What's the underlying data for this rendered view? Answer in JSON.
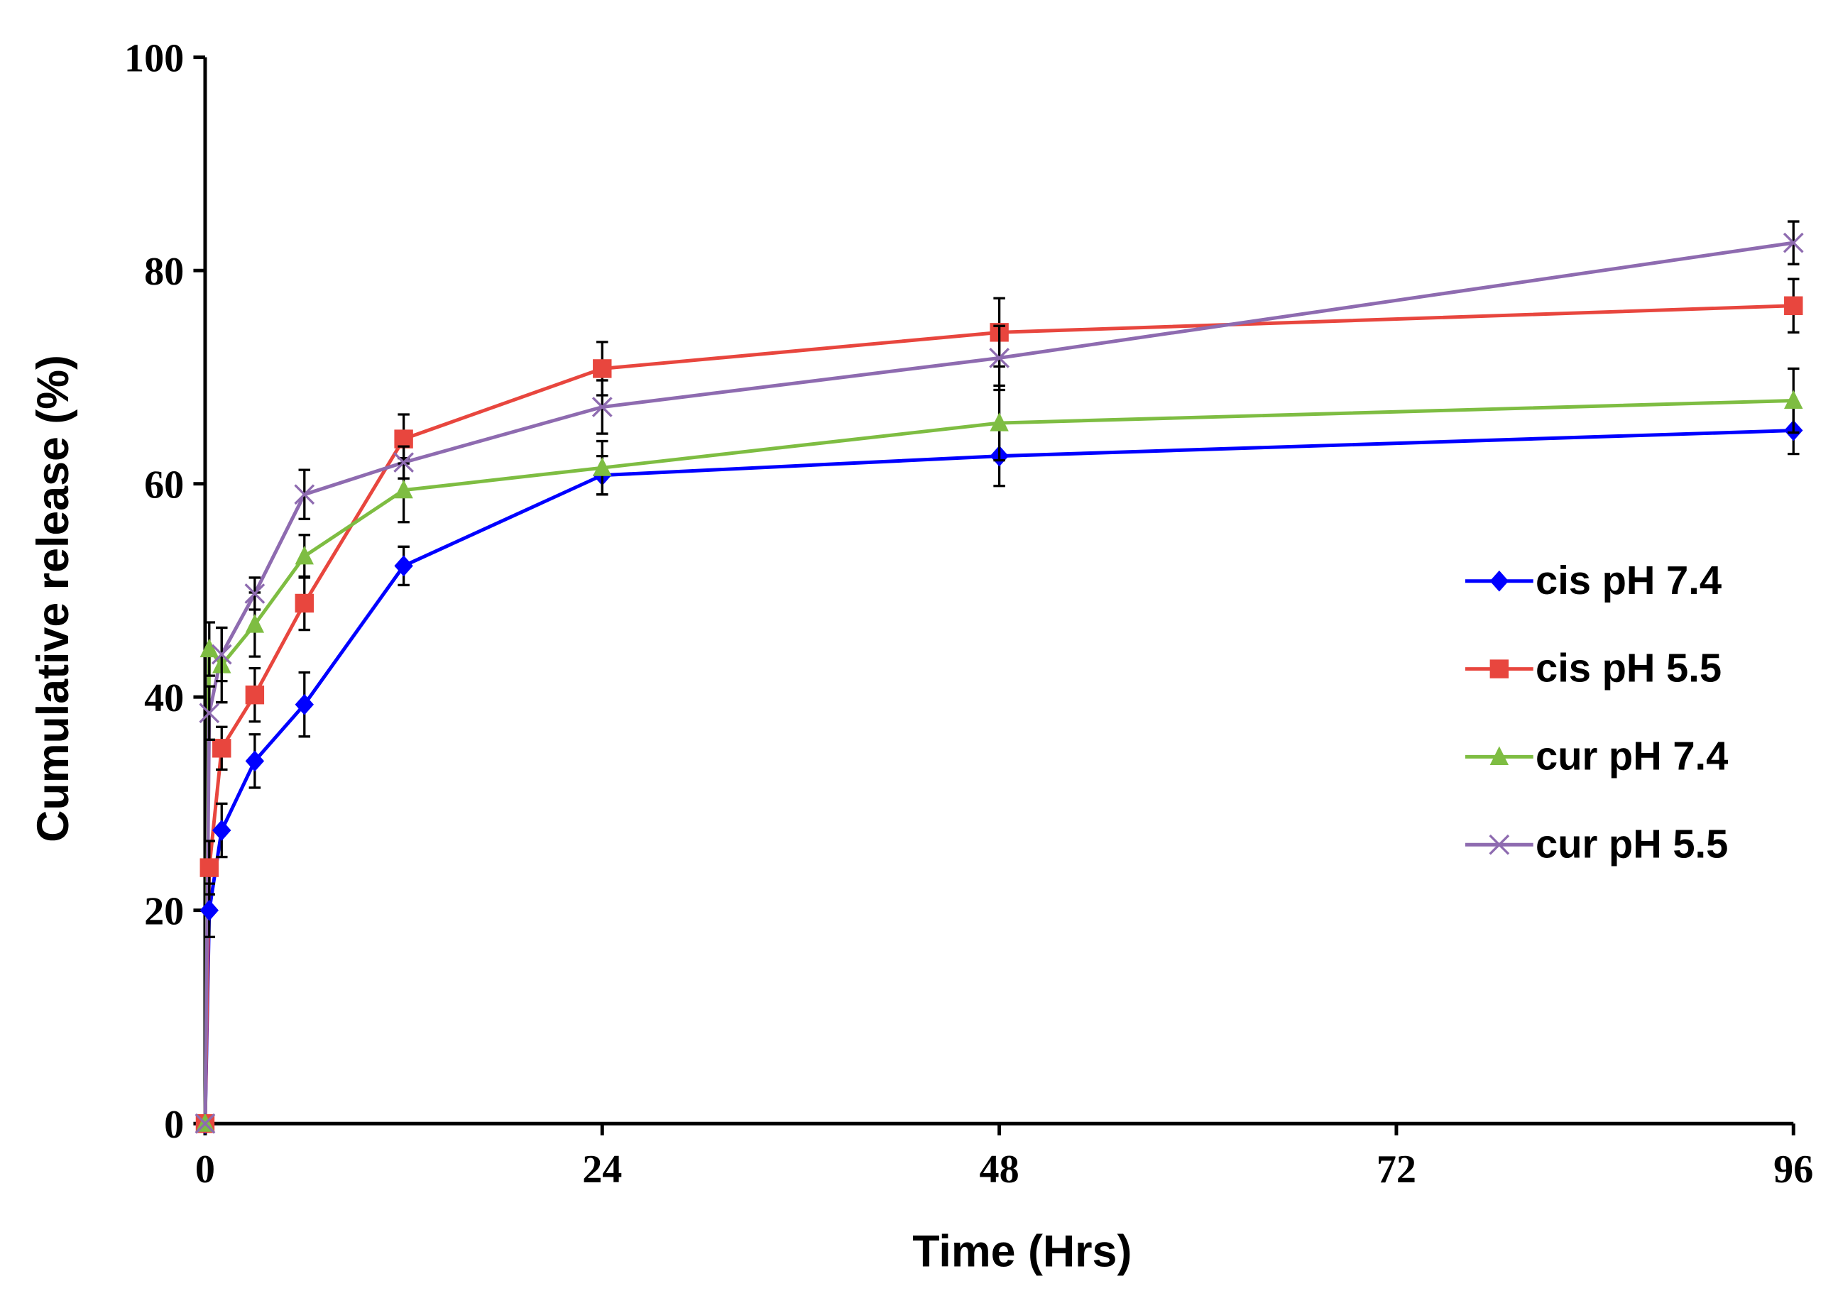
{
  "chart_data": {
    "type": "line",
    "x_label": "Time (Hrs)",
    "y_label": "Cumulative release (%)",
    "x": [
      0,
      0.25,
      1,
      3,
      6,
      12,
      24,
      48,
      96
    ],
    "series": [
      {
        "name": "cis pH 7.4",
        "color": "#0000ff",
        "marker": "diamond",
        "values": [
          0,
          20,
          27.5,
          34,
          39.3,
          52.3,
          60.8,
          62.6,
          65
        ],
        "errors": [
          0,
          2.5,
          2.5,
          2.5,
          3,
          1.8,
          1.8,
          2.8,
          2.2
        ]
      },
      {
        "name": "cis pH 5.5",
        "color": "#e8463e",
        "marker": "square",
        "values": [
          0,
          24,
          35.2,
          40.2,
          48.8,
          64.2,
          70.8,
          74.2,
          76.7
        ],
        "errors": [
          0,
          2.5,
          2,
          2.5,
          2.5,
          2.3,
          2.5,
          3.2,
          2.5
        ]
      },
      {
        "name": "cur pH 7.4",
        "color": "#7ebd42",
        "marker": "triangle",
        "values": [
          0,
          44.5,
          43,
          46.8,
          53.2,
          59.4,
          61.5,
          65.7,
          67.8
        ],
        "errors": [
          0,
          2.5,
          3.5,
          3,
          2,
          3,
          2.5,
          3.5,
          3
        ]
      },
      {
        "name": "cur pH 5.5",
        "color": "#8e6bb0",
        "marker": "x",
        "values": [
          0,
          38.5,
          44,
          49.7,
          59,
          62,
          67.2,
          71.8,
          82.6
        ],
        "errors": [
          0,
          2.5,
          2.5,
          1.5,
          2.3,
          1.5,
          2.5,
          3,
          2
        ]
      }
    ],
    "xlim": [
      0,
      96
    ],
    "xticks": [
      0,
      24,
      48,
      72,
      96
    ],
    "ylim": [
      0,
      100
    ],
    "yticks": [
      0,
      20,
      40,
      60,
      80,
      100
    ],
    "grid": false,
    "legend": "right"
  }
}
